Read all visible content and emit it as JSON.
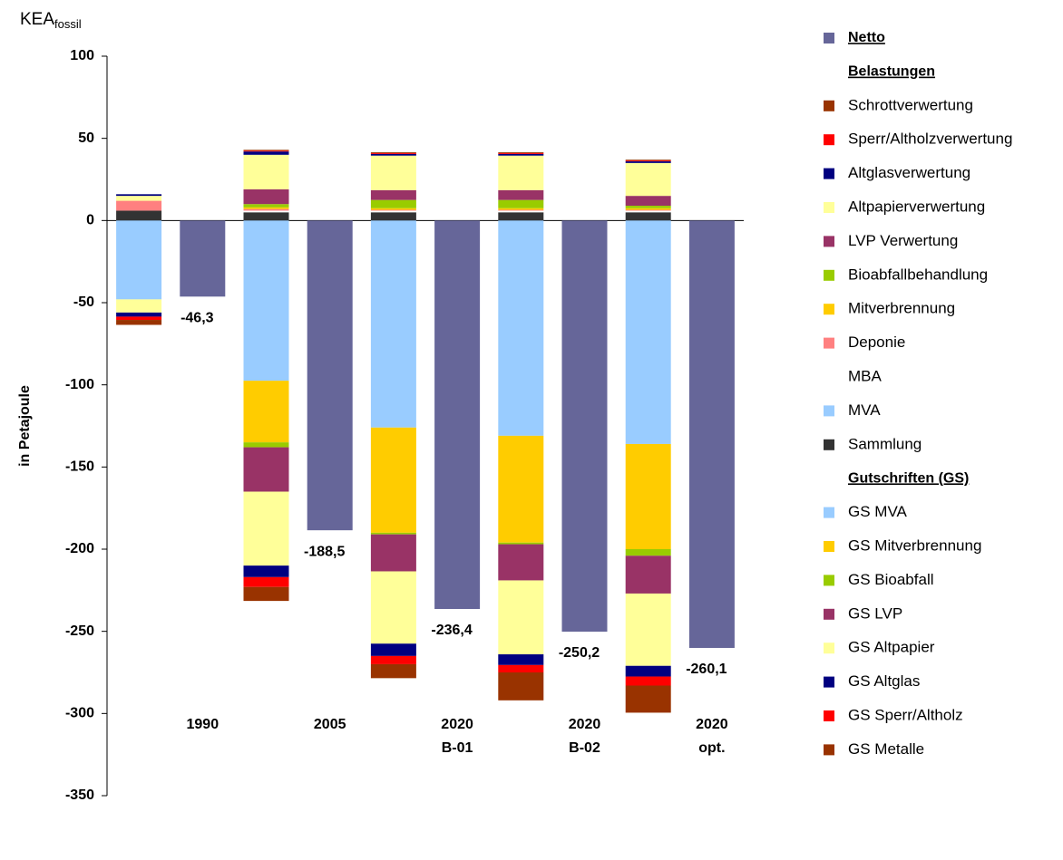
{
  "chart_data": {
    "type": "stacked_bar",
    "ylabel_top": "KEA",
    "ylabel_top_sub": "fossil",
    "ylabel": "in Petajoule",
    "categories": [
      [
        "1990"
      ],
      [
        "2005"
      ],
      [
        "2020",
        "B-01"
      ],
      [
        "2020",
        "B-02"
      ],
      [
        "2020",
        "opt."
      ]
    ],
    "ylim": [
      -350,
      100
    ],
    "yticks": [
      -350,
      -300,
      -250,
      -200,
      -150,
      -100,
      -50,
      0,
      50,
      100
    ],
    "groups": [
      "Belastungen",
      "Gutschriften (GS)"
    ],
    "series": [
      {
        "name": "Netto",
        "color": "#666699",
        "values": [
          -46.3,
          -188.5,
          -236.4,
          -250.2,
          -260.1
        ],
        "value_labels": [
          "-46,3",
          "-188,5",
          "-236,4",
          "-250,2",
          "-260,1"
        ]
      },
      {
        "name": "Schrottverwertung",
        "color": "#993300",
        "group": 0,
        "values": [
          0,
          0.5,
          0.5,
          0.5,
          0.5
        ]
      },
      {
        "name": "Sperr/Altholzverwertung",
        "color": "#ff0000",
        "group": 0,
        "values": [
          0,
          0.5,
          0.5,
          0.5,
          0.5
        ]
      },
      {
        "name": "Altglasverwertung",
        "color": "#000080",
        "group": 0,
        "values": [
          1,
          2,
          1,
          1,
          1
        ]
      },
      {
        "name": "Altpapierverwertung",
        "color": "#ffff99",
        "group": 0,
        "values": [
          3,
          21,
          21,
          21,
          20
        ]
      },
      {
        "name": "LVP Verwertung",
        "color": "#993366",
        "group": 0,
        "values": [
          0,
          9,
          6,
          6,
          6
        ]
      },
      {
        "name": "Bioabfallbehandlung",
        "color": "#99cc00",
        "group": 0,
        "values": [
          0,
          2,
          5,
          5,
          1.5
        ]
      },
      {
        "name": "Mitverbrennung",
        "color": "#ffcc00",
        "group": 0,
        "values": [
          0,
          1,
          1,
          1,
          1
        ]
      },
      {
        "name": "Deponie",
        "color": "#ff8080",
        "group": 0,
        "values": [
          6,
          1,
          0.5,
          0.5,
          0.5
        ]
      },
      {
        "name": "MBA",
        "color": "#ffffff",
        "group": 0,
        "values": [
          0,
          1,
          1,
          1,
          1
        ]
      },
      {
        "name": "MVA",
        "color": "#99ccff",
        "group": 0,
        "values": [
          0,
          0,
          0,
          0,
          0
        ]
      },
      {
        "name": "Sammlung",
        "color": "#333333",
        "group": 0,
        "values": [
          6,
          5,
          5,
          5,
          5
        ]
      },
      {
        "name": "GS MVA",
        "color": "#99ccff",
        "group": 1,
        "values": [
          -48,
          -97.5,
          -126,
          -131,
          -136
        ]
      },
      {
        "name": "GS Mitverbrennung",
        "color": "#ffcc00",
        "group": 1,
        "values": [
          0,
          -37.5,
          -64,
          -65,
          -64
        ]
      },
      {
        "name": "GS Bioabfall",
        "color": "#99cc00",
        "group": 1,
        "values": [
          0,
          -3,
          -1,
          -1,
          -4
        ]
      },
      {
        "name": "GS LVP",
        "color": "#993366",
        "group": 1,
        "values": [
          0,
          -27,
          -22.5,
          -22,
          -23
        ]
      },
      {
        "name": "GS Altpapier",
        "color": "#ffff99",
        "group": 1,
        "values": [
          -8,
          -45,
          -44,
          -45,
          -44
        ]
      },
      {
        "name": "GS Altglas",
        "color": "#000080",
        "group": 1,
        "values": [
          -2.5,
          -7,
          -7.5,
          -6.5,
          -6.5
        ]
      },
      {
        "name": "GS Sperr/Altholz",
        "color": "#ff0000",
        "group": 1,
        "values": [
          -2,
          -6,
          -5,
          -4.5,
          -5.5
        ]
      },
      {
        "name": "GS Metalle",
        "color": "#993300",
        "group": 1,
        "values": [
          -3,
          -8.5,
          -8.5,
          -17,
          -16.5
        ]
      }
    ]
  }
}
